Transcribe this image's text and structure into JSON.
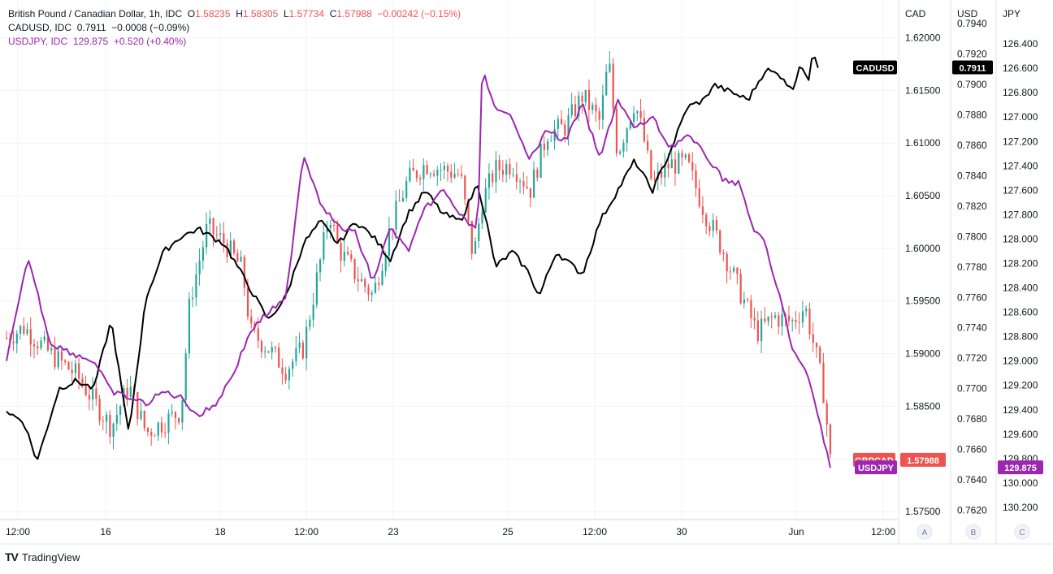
{
  "header": {
    "symbol": "British Pound / Canadian Dollar, 1h, IDC",
    "o_label": "O",
    "o": "1.58235",
    "h_label": "H",
    "h": "1.58305",
    "l_label": "L",
    "l": "1.57734",
    "c_label": "C",
    "c": "1.57988",
    "change": "−0.00242 (−0.15%)",
    "cadusd_label": "CADUSD, IDC",
    "cadusd_value": "0.7911",
    "cadusd_change": "−0.0008 (−0.09%)",
    "usdjpy_label": "USDJPY, IDC",
    "usdjpy_value": "129.875",
    "usdjpy_change": "+0.520 (+0.40%)"
  },
  "footer": {
    "brand": "TradingView",
    "logo": "TV"
  },
  "colors": {
    "up": "#26a69a",
    "down": "#ef5350",
    "cadusd": "#000000",
    "usdjpy": "#9c27b0",
    "grid": "#f0f3fa",
    "axis_text": "#131722"
  },
  "chart_data": {
    "type": "line",
    "title": "British Pound / Canadian Dollar, 1h, IDC",
    "x_ticks": [
      "12:00",
      "16",
      "18",
      "12:00",
      "23",
      "25",
      "12:00",
      "30",
      "Jun",
      "12:00"
    ],
    "axes": [
      {
        "name": "CAD",
        "ticks": [
          "1.62000",
          "1.61500",
          "1.61000",
          "1.60500",
          "1.60000",
          "1.59500",
          "1.59000",
          "1.58500",
          "1.58000",
          "1.57500"
        ],
        "ylim": [
          1.5747,
          1.6222
        ]
      },
      {
        "name": "USD",
        "ticks": [
          "0.7940",
          "0.7920",
          "0.7900",
          "0.7880",
          "0.7860",
          "0.7840",
          "0.7820",
          "0.7800",
          "0.7780",
          "0.7760",
          "0.7740",
          "0.7720",
          "0.7700",
          "0.7680",
          "0.7660",
          "0.7640",
          "0.7620"
        ],
        "ylim": [
          0.7617,
          0.7946
        ]
      },
      {
        "name": "JPY",
        "ticks": [
          "126.400",
          "126.600",
          "126.800",
          "127.000",
          "127.200",
          "127.400",
          "127.600",
          "127.800",
          "128.000",
          "128.200",
          "128.400",
          "128.600",
          "128.800",
          "129.000",
          "129.200",
          "129.400",
          "129.600",
          "129.800",
          "130.000",
          "130.200"
        ],
        "ylim": [
          126.16,
          130.26
        ],
        "inverted": true
      }
    ],
    "axis_buttons": [
      "A",
      "B",
      "C"
    ],
    "series": [
      {
        "name": "GBPCAD",
        "kind": "candles",
        "axis": 0,
        "last": "1.57988",
        "anchors": [
          [
            0,
            1.5915
          ],
          [
            0.02,
            1.5925
          ],
          [
            0.05,
            1.59
          ],
          [
            0.08,
            1.588
          ],
          [
            0.1,
            1.5855
          ],
          [
            0.12,
            1.583
          ],
          [
            0.14,
            1.587
          ],
          [
            0.16,
            1.5825
          ],
          [
            0.18,
            1.5835
          ],
          [
            0.2,
            1.5845
          ],
          [
            0.21,
            1.595
          ],
          [
            0.23,
            1.602
          ],
          [
            0.25,
            1.6005
          ],
          [
            0.27,
            1.598
          ],
          [
            0.28,
            1.592
          ],
          [
            0.3,
            1.5905
          ],
          [
            0.32,
            1.5885
          ],
          [
            0.34,
            1.5905
          ],
          [
            0.36,
            1.599
          ],
          [
            0.37,
            1.6035
          ],
          [
            0.38,
            1.6
          ],
          [
            0.4,
            1.5975
          ],
          [
            0.42,
            1.5955
          ],
          [
            0.44,
            1.602
          ],
          [
            0.46,
            1.6065
          ],
          [
            0.48,
            1.608
          ],
          [
            0.5,
            1.6075
          ],
          [
            0.52,
            1.607
          ],
          [
            0.535,
            1.599
          ],
          [
            0.545,
            1.6045
          ],
          [
            0.56,
            1.6075
          ],
          [
            0.58,
            1.608
          ],
          [
            0.6,
            1.6055
          ],
          [
            0.62,
            1.611
          ],
          [
            0.64,
            1.6115
          ],
          [
            0.66,
            1.6145
          ],
          [
            0.68,
            1.612
          ],
          [
            0.69,
            1.618
          ],
          [
            0.7,
            1.609
          ],
          [
            0.72,
            1.614
          ],
          [
            0.73,
            1.6105
          ],
          [
            0.74,
            1.606
          ],
          [
            0.76,
            1.608
          ],
          [
            0.78,
            1.608
          ],
          [
            0.8,
            1.6035
          ],
          [
            0.82,
            1.6
          ],
          [
            0.84,
            1.596
          ],
          [
            0.86,
            1.592
          ],
          [
            0.88,
            1.5935
          ],
          [
            0.9,
            1.593
          ],
          [
            0.915,
            1.5945
          ],
          [
            0.93,
            1.589
          ],
          [
            0.937,
            1.586
          ],
          [
            0.944,
            1.5799
          ]
        ]
      },
      {
        "name": "CADUSD",
        "kind": "line",
        "axis": 1,
        "last": "0.7911",
        "anchors": [
          [
            0,
            0.7685
          ],
          [
            0.02,
            0.7678
          ],
          [
            0.035,
            0.7652
          ],
          [
            0.06,
            0.77
          ],
          [
            0.08,
            0.7705
          ],
          [
            0.1,
            0.77
          ],
          [
            0.12,
            0.7745
          ],
          [
            0.14,
            0.767
          ],
          [
            0.16,
            0.776
          ],
          [
            0.18,
            0.779
          ],
          [
            0.2,
            0.78
          ],
          [
            0.22,
            0.7805
          ],
          [
            0.25,
            0.7795
          ],
          [
            0.28,
            0.7765
          ],
          [
            0.3,
            0.7745
          ],
          [
            0.32,
            0.776
          ],
          [
            0.34,
            0.7795
          ],
          [
            0.36,
            0.781
          ],
          [
            0.38,
            0.7795
          ],
          [
            0.4,
            0.781
          ],
          [
            0.42,
            0.78
          ],
          [
            0.44,
            0.7785
          ],
          [
            0.46,
            0.7815
          ],
          [
            0.48,
            0.783
          ],
          [
            0.5,
            0.7815
          ],
          [
            0.52,
            0.781
          ],
          [
            0.54,
            0.7835
          ],
          [
            0.55,
            0.781
          ],
          [
            0.56,
            0.778
          ],
          [
            0.58,
            0.779
          ],
          [
            0.6,
            0.7775
          ],
          [
            0.61,
            0.776
          ],
          [
            0.63,
            0.779
          ],
          [
            0.66,
            0.7775
          ],
          [
            0.68,
            0.781
          ],
          [
            0.7,
            0.783
          ],
          [
            0.72,
            0.785
          ],
          [
            0.74,
            0.783
          ],
          [
            0.76,
            0.7855
          ],
          [
            0.78,
            0.7885
          ],
          [
            0.8,
            0.789
          ],
          [
            0.81,
            0.79
          ],
          [
            0.83,
            0.7895
          ],
          [
            0.85,
            0.789
          ],
          [
            0.87,
            0.791
          ],
          [
            0.89,
            0.7905
          ],
          [
            0.9,
            0.7895
          ],
          [
            0.91,
            0.7915
          ],
          [
            0.92,
            0.79
          ],
          [
            0.924,
            0.7925
          ],
          [
            0.93,
            0.7911
          ]
        ]
      },
      {
        "name": "USDJPY",
        "kind": "line",
        "axis": 2,
        "last": "129.875",
        "anchors": [
          [
            0,
            129.0
          ],
          [
            0.025,
            128.15
          ],
          [
            0.05,
            128.85
          ],
          [
            0.08,
            128.95
          ],
          [
            0.1,
            129.0
          ],
          [
            0.12,
            129.25
          ],
          [
            0.14,
            129.3
          ],
          [
            0.16,
            129.35
          ],
          [
            0.18,
            129.25
          ],
          [
            0.2,
            129.3
          ],
          [
            0.22,
            129.45
          ],
          [
            0.24,
            129.35
          ],
          [
            0.26,
            129.1
          ],
          [
            0.28,
            128.75
          ],
          [
            0.3,
            128.6
          ],
          [
            0.32,
            128.5
          ],
          [
            0.34,
            127.3
          ],
          [
            0.36,
            127.7
          ],
          [
            0.38,
            127.9
          ],
          [
            0.4,
            127.95
          ],
          [
            0.42,
            128.35
          ],
          [
            0.44,
            127.9
          ],
          [
            0.46,
            128.1
          ],
          [
            0.48,
            127.75
          ],
          [
            0.5,
            127.6
          ],
          [
            0.52,
            127.8
          ],
          [
            0.54,
            127.95
          ],
          [
            0.545,
            126.6
          ],
          [
            0.56,
            126.95
          ],
          [
            0.58,
            127.0
          ],
          [
            0.6,
            127.35
          ],
          [
            0.62,
            127.1
          ],
          [
            0.64,
            127.2
          ],
          [
            0.66,
            126.9
          ],
          [
            0.68,
            127.35
          ],
          [
            0.7,
            126.85
          ],
          [
            0.72,
            127.1
          ],
          [
            0.74,
            127.0
          ],
          [
            0.76,
            127.25
          ],
          [
            0.78,
            127.15
          ],
          [
            0.8,
            127.3
          ],
          [
            0.82,
            127.5
          ],
          [
            0.84,
            127.55
          ],
          [
            0.855,
            127.9
          ],
          [
            0.87,
            128.05
          ],
          [
            0.88,
            128.35
          ],
          [
            0.89,
            128.55
          ],
          [
            0.9,
            128.9
          ],
          [
            0.92,
            129.15
          ],
          [
            0.935,
            129.6
          ],
          [
            0.944,
            129.875
          ]
        ]
      }
    ]
  }
}
